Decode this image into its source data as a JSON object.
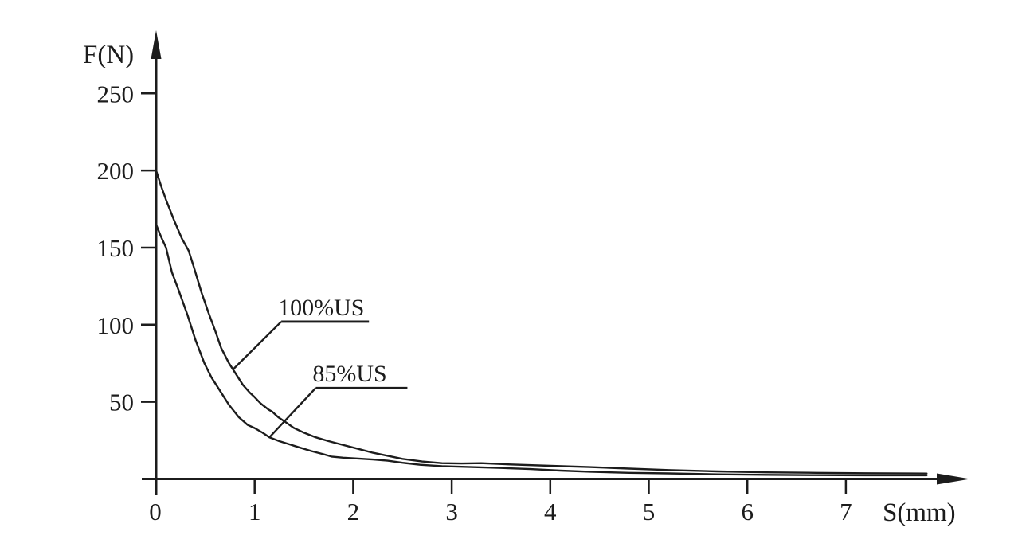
{
  "page": {
    "background_color": "#ffffff",
    "ink_color": "#1c1c1c"
  },
  "chart_data": {
    "type": "line",
    "title": "",
    "xlabel": "S(mm)",
    "ylabel": "F(N)",
    "xlim": [
      0,
      8.25
    ],
    "ylim": [
      0,
      290
    ],
    "x_ticks": [
      1,
      2,
      3,
      4,
      5,
      6,
      7
    ],
    "origin_label": "0",
    "y_ticks": [
      50,
      100,
      150,
      200,
      250
    ],
    "grid": false,
    "legend_position": "leader-line annotations inside plot",
    "series": [
      {
        "name": "100%US",
        "points": [
          [
            0,
            200
          ],
          [
            0.05,
            190
          ],
          [
            0.1,
            181
          ],
          [
            0.18,
            168
          ],
          [
            0.26,
            156
          ],
          [
            0.33,
            148
          ],
          [
            0.38,
            138
          ],
          [
            0.46,
            121
          ],
          [
            0.53,
            108
          ],
          [
            0.6,
            96
          ],
          [
            0.66,
            85
          ],
          [
            0.74,
            75
          ],
          [
            0.8,
            69
          ],
          [
            0.88,
            61
          ],
          [
            0.95,
            56
          ],
          [
            1.0,
            53
          ],
          [
            1.06,
            49
          ],
          [
            1.1,
            47
          ],
          [
            1.14,
            45
          ],
          [
            1.18,
            43.5
          ],
          [
            1.24,
            40
          ],
          [
            1.31,
            37
          ],
          [
            1.4,
            33
          ],
          [
            1.5,
            30
          ],
          [
            1.62,
            27
          ],
          [
            1.75,
            24.5
          ],
          [
            1.9,
            22
          ],
          [
            2.05,
            19.5
          ],
          [
            2.2,
            17
          ],
          [
            2.35,
            15
          ],
          [
            2.5,
            13
          ],
          [
            2.7,
            11.3
          ],
          [
            2.9,
            10.2
          ],
          [
            3.1,
            10
          ],
          [
            3.3,
            10.2
          ],
          [
            3.6,
            9.4
          ],
          [
            4.0,
            8.5
          ],
          [
            4.4,
            7.7
          ],
          [
            4.8,
            6.7
          ],
          [
            5.2,
            5.8
          ],
          [
            5.7,
            4.9
          ],
          [
            6.2,
            4.3
          ],
          [
            6.7,
            4.0
          ],
          [
            7.2,
            3.7
          ],
          [
            7.82,
            3.5
          ]
        ]
      },
      {
        "name": "85%US",
        "points": [
          [
            0,
            165
          ],
          [
            0.05,
            157
          ],
          [
            0.1,
            150
          ],
          [
            0.16,
            134
          ],
          [
            0.23,
            122
          ],
          [
            0.32,
            106
          ],
          [
            0.4,
            90
          ],
          [
            0.49,
            75
          ],
          [
            0.56,
            66
          ],
          [
            0.64,
            58
          ],
          [
            0.74,
            48
          ],
          [
            0.84,
            40
          ],
          [
            0.93,
            35
          ],
          [
            1.0,
            33
          ],
          [
            1.08,
            30
          ],
          [
            1.15,
            27
          ],
          [
            1.25,
            24.5
          ],
          [
            1.35,
            22.5
          ],
          [
            1.45,
            20.5
          ],
          [
            1.58,
            18
          ],
          [
            1.7,
            16
          ],
          [
            1.78,
            14.5
          ],
          [
            1.9,
            13.8
          ],
          [
            2.05,
            13.2
          ],
          [
            2.2,
            12.6
          ],
          [
            2.35,
            11.8
          ],
          [
            2.5,
            10.5
          ],
          [
            2.68,
            9.2
          ],
          [
            2.9,
            8.3
          ],
          [
            3.2,
            7.7
          ],
          [
            3.5,
            7.1
          ],
          [
            3.8,
            6.4
          ],
          [
            4.1,
            5.4
          ],
          [
            4.4,
            4.7
          ],
          [
            4.8,
            4.0
          ],
          [
            5.2,
            3.6
          ],
          [
            5.7,
            3.0
          ],
          [
            6.2,
            2.7
          ],
          [
            6.7,
            2.5
          ],
          [
            7.2,
            2.4
          ],
          [
            7.82,
            2.4
          ]
        ]
      }
    ],
    "annotations": [
      {
        "label": "100%US",
        "points_to": {
          "s": 0.78,
          "f": 71
        },
        "elbow": {
          "s": 1.27,
          "f": 102
        },
        "underline_end_s": 2.16
      },
      {
        "label": "85%US",
        "points_to": {
          "s": 1.15,
          "f": 27
        },
        "elbow": {
          "s": 1.62,
          "f": 59
        },
        "underline_end_s": 2.55
      }
    ]
  }
}
